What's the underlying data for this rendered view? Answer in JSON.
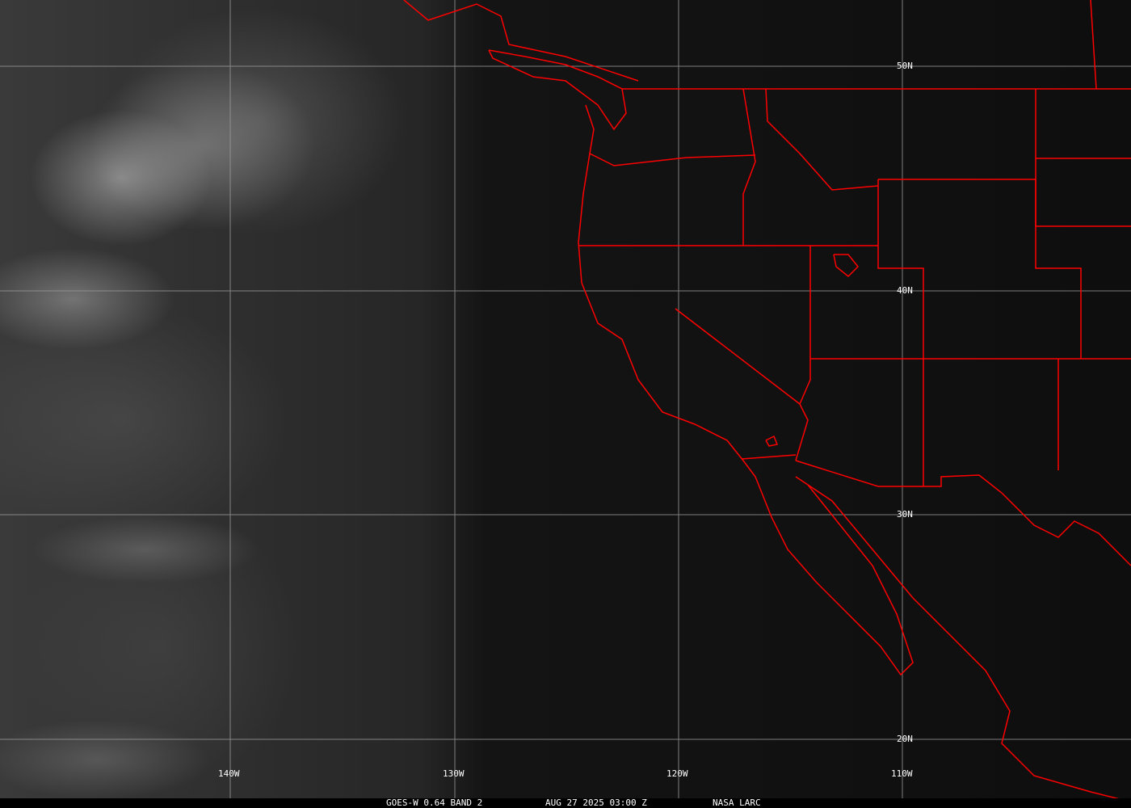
{
  "map": {
    "graticule": {
      "longitudes": [
        "140W",
        "130W",
        "120W",
        "110W"
      ],
      "latitudes": [
        "50N",
        "40N",
        "30N",
        "20N"
      ]
    },
    "colors": {
      "borders": "#ff0000",
      "grid": "#9a9a9a",
      "text": "#ffffff"
    }
  },
  "caption": {
    "product": "GOES-W 0.64 BAND 2",
    "datetime": "AUG 27 2025 03:00 Z",
    "source": "NASA LARC"
  }
}
